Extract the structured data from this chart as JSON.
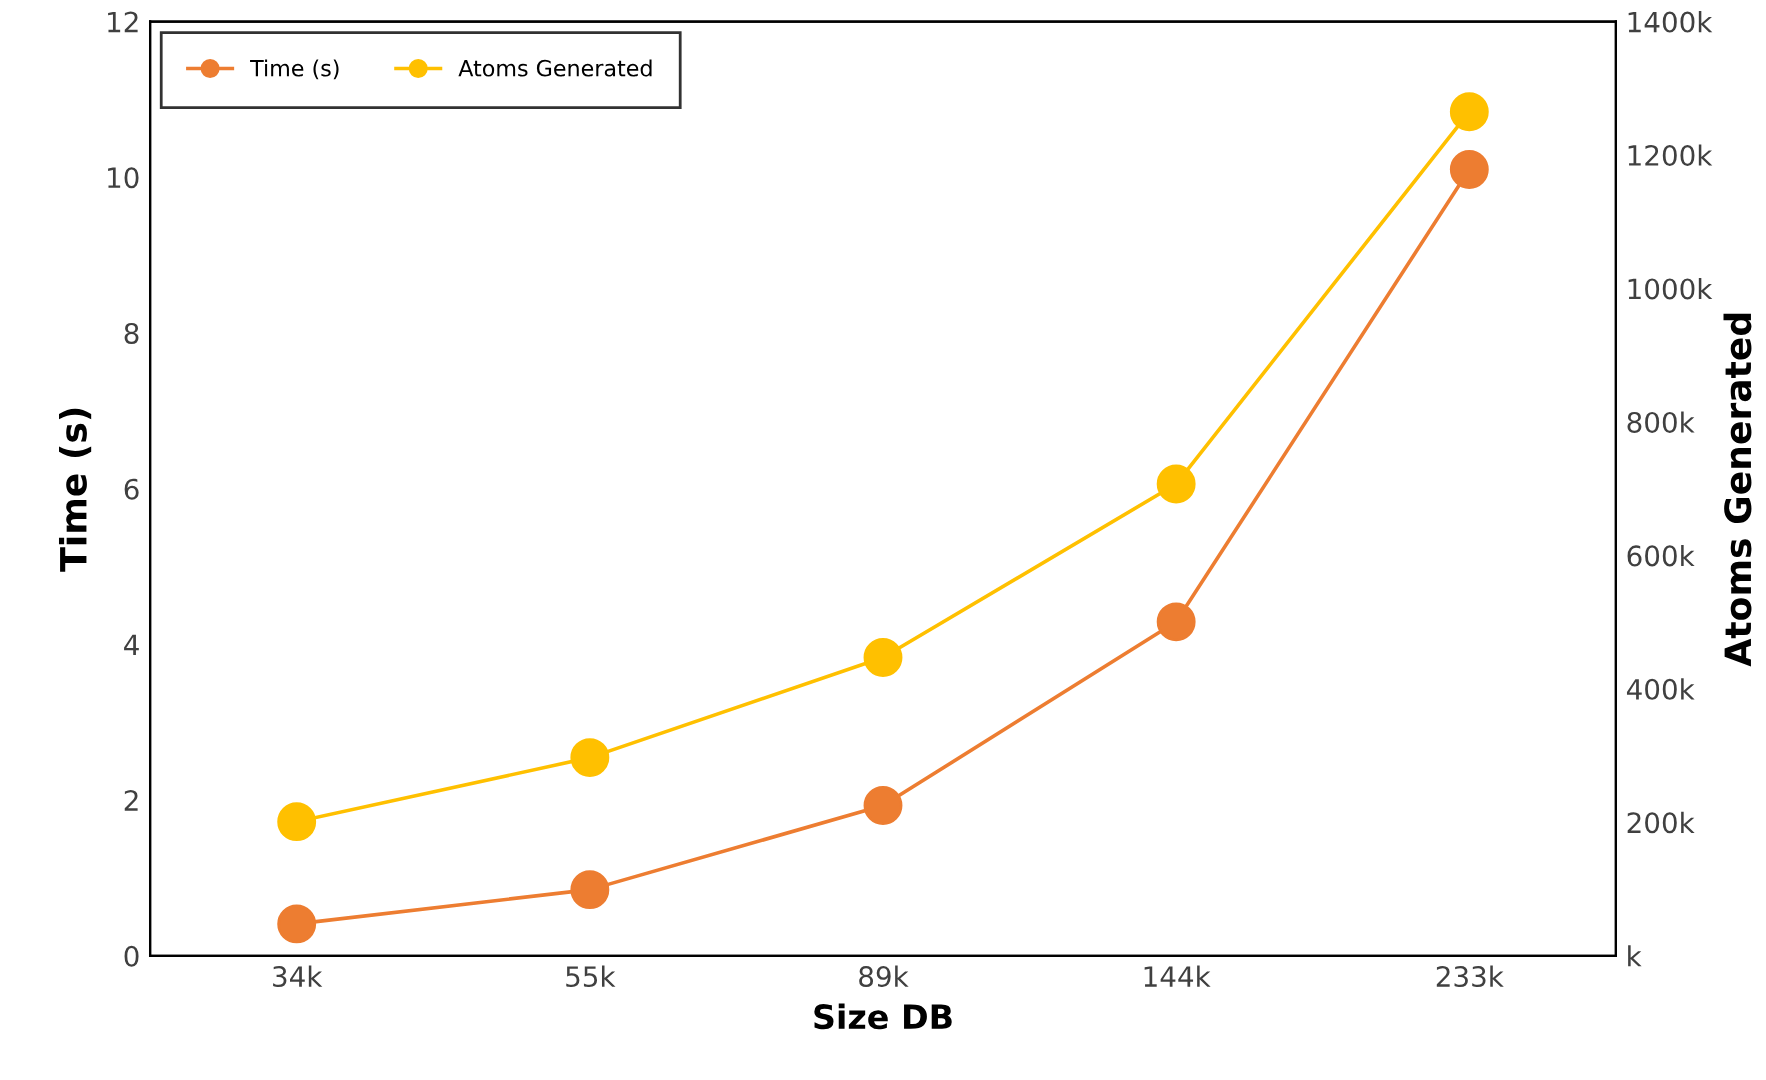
{
  "chart_data": {
    "type": "line",
    "xlabel": "Size DB",
    "ylabel": "Time (s)",
    "y2label": "Atoms Generated",
    "categories": [
      "34k",
      "55k",
      "89k",
      "144k",
      "233k"
    ],
    "series": [
      {
        "name": "Time (s)",
        "color": "#ed7d31",
        "values": [
          0.41,
          0.85,
          1.93,
          4.29,
          10.1
        ]
      },
      {
        "name": "Atoms Generated",
        "color": "#ffc000",
        "axis": "y2",
        "values": [
          201,
          297,
          447,
          707,
          1265
        ]
      }
    ],
    "ylim": [
      0,
      12
    ],
    "yticks": [
      0,
      2,
      4,
      6,
      8,
      10,
      12
    ],
    "y2lim": [
      0,
      1400
    ],
    "y2ticks": [
      {
        "value": 0,
        "label": "k"
      },
      {
        "value": 200,
        "label": "200k"
      },
      {
        "value": 400,
        "label": "400k"
      },
      {
        "value": 600,
        "label": "600k"
      },
      {
        "value": 800,
        "label": "800k"
      },
      {
        "value": 1000,
        "label": "1000k"
      },
      {
        "value": 1200,
        "label": "1200k"
      },
      {
        "value": 1400,
        "label": "1400k"
      }
    ],
    "marker": "circle",
    "line_style": "solid",
    "grid": false,
    "legend": "top left"
  }
}
